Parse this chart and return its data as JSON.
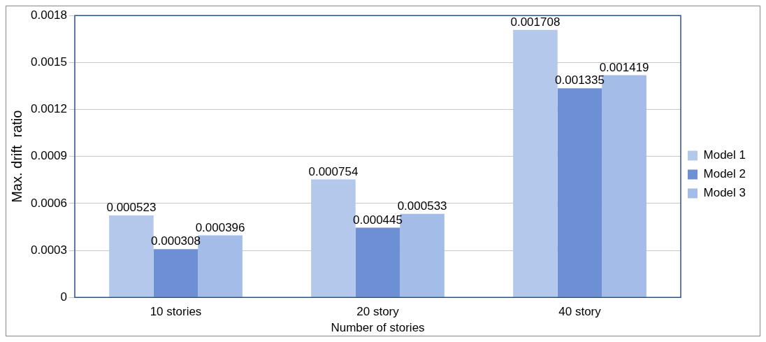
{
  "chart_data": {
    "type": "bar",
    "xlabel": "Number of stories",
    "ylabel": "Max. drift  ratio",
    "categories": [
      "10 stories",
      "20 story",
      "40 story"
    ],
    "series": [
      {
        "name": "Model 1",
        "color": "#b4c8ec",
        "values": [
          0.000523,
          0.000754,
          0.001708
        ]
      },
      {
        "name": "Model 2",
        "color": "#6d8fd3",
        "values": [
          0.000308,
          0.000445,
          0.001335
        ]
      },
      {
        "name": "Model 3",
        "color": "#a3bce8",
        "values": [
          0.000396,
          0.000533,
          0.001419
        ]
      }
    ],
    "ylim": [
      0,
      0.0018
    ],
    "yticks": [
      0,
      0.0003,
      0.0006,
      0.0009,
      0.0012,
      0.0015,
      0.0018
    ],
    "grid": "y",
    "legend": "right",
    "data_labels": true
  }
}
